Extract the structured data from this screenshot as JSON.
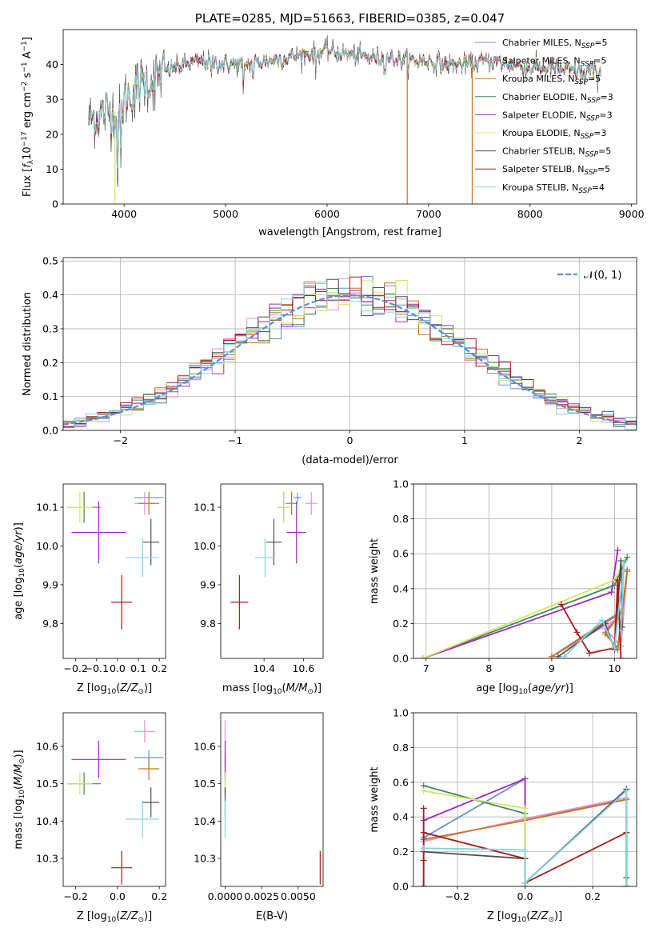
{
  "colors": {
    "chabrier_miles": "#6a8fd8",
    "salpeter_miles": "#e88fca",
    "kroupa_miles": "#c9731f",
    "chabrier_elodie": "#3f8a55",
    "salpeter_elodie": "#a126c4",
    "kroupa_elodie": "#d4e45f",
    "chabrier_stelib": "#4d4d4d",
    "salpeter_stelib": "#a81a1a",
    "kroupa_stelib": "#7fd6dc"
  },
  "chart_data": [
    {
      "id": "spectrum",
      "type": "line",
      "title": "PLATE=0285, MJD=51663, FIBERID=0385, z=0.047",
      "xlabel": "wavelength [Angstrom, rest frame]",
      "ylabel": "Flux [f_λ10^-17 erg cm^-2 s^-1 A^-1]",
      "xlim": [
        3400,
        9050
      ],
      "ylim": [
        0,
        50
      ],
      "xticks": [
        4000,
        5000,
        6000,
        7000,
        8000,
        9000
      ],
      "yticks": [
        0,
        10,
        20,
        30,
        40
      ],
      "legend_loc": "right",
      "legend": [
        {
          "key": "chabrier_miles",
          "label": "Chabrier MILES, N",
          "sub": "SSP",
          "suffix": "=5"
        },
        {
          "key": "salpeter_miles",
          "label": "Salpeter MILES, N",
          "sub": "SSP",
          "suffix": "=5"
        },
        {
          "key": "kroupa_miles",
          "label": "Kroupa MILES, N",
          "sub": "SSP",
          "suffix": "=5"
        },
        {
          "key": "chabrier_elodie",
          "label": "Chabrier ELODIE, N",
          "sub": "SSP",
          "suffix": "=3"
        },
        {
          "key": "salpeter_elodie",
          "label": "Salpeter ELODIE, N",
          "sub": "SSP",
          "suffix": "=3"
        },
        {
          "key": "kroupa_elodie",
          "label": "Kroupa ELODIE, N",
          "sub": "SSP",
          "suffix": "=3"
        },
        {
          "key": "chabrier_stelib",
          "label": "Chabrier STELIB, N",
          "sub": "SSP",
          "suffix": "=5"
        },
        {
          "key": "salpeter_stelib",
          "label": "Salpeter STELIB, N",
          "sub": "SSP",
          "suffix": "=5"
        },
        {
          "key": "kroupa_stelib",
          "label": "Kroupa STELIB, N",
          "sub": "SSP",
          "suffix": "=4"
        }
      ],
      "continuum": [
        [
          3650,
          24
        ],
        [
          3700,
          25
        ],
        [
          3800,
          26
        ],
        [
          3900,
          27
        ],
        [
          3950,
          25
        ],
        [
          4000,
          30
        ],
        [
          4100,
          33
        ],
        [
          4200,
          35
        ],
        [
          4300,
          36
        ],
        [
          4400,
          38
        ],
        [
          4600,
          40
        ],
        [
          4800,
          41
        ],
        [
          5000,
          40
        ],
        [
          5200,
          40
        ],
        [
          5400,
          41
        ],
        [
          5600,
          42
        ],
        [
          5800,
          43
        ],
        [
          6000,
          44
        ],
        [
          6200,
          43
        ],
        [
          6400,
          42
        ],
        [
          6600,
          42
        ],
        [
          6800,
          41
        ],
        [
          7000,
          41
        ],
        [
          7200,
          40
        ],
        [
          7400,
          40
        ],
        [
          7600,
          41
        ],
        [
          7800,
          40
        ],
        [
          8000,
          39
        ],
        [
          8200,
          39
        ],
        [
          8400,
          38
        ],
        [
          8600,
          38
        ],
        [
          8700,
          38
        ]
      ],
      "dips": [
        [
          3934,
          5
        ],
        [
          3969,
          8
        ],
        [
          4102,
          28
        ],
        [
          4304,
          31
        ],
        [
          4861,
          36
        ],
        [
          5175,
          30
        ],
        [
          5270,
          35
        ],
        [
          5890,
          37
        ],
        [
          6563,
          38
        ],
        [
          8498,
          36
        ],
        [
          8542,
          34
        ],
        [
          8662,
          35
        ]
      ],
      "drops": [
        {
          "key": "kroupa_miles",
          "x": 6790
        },
        {
          "key": "kroupa_miles",
          "x": 7430
        },
        {
          "key": "kroupa_elodie",
          "x": 3910
        }
      ]
    },
    {
      "id": "residual_hist",
      "type": "histogram",
      "xlabel": "(data-model)/error",
      "ylabel": "Normed distribution",
      "xlim": [
        -2.5,
        2.5
      ],
      "ylim": [
        0,
        0.51
      ],
      "xticks": [
        -2,
        -1,
        0,
        1,
        2
      ],
      "yticks": [
        0.0,
        0.1,
        0.2,
        0.3,
        0.4,
        0.5
      ],
      "grid": true,
      "bin_width": 0.1,
      "legend": [
        {
          "label": "𝒩(0, 1)"
        }
      ],
      "legend_loc": "top-right"
    },
    {
      "id": "age_vs_Z",
      "type": "errorbar",
      "xlabel": "Z [log10(Z/Z⊙)]",
      "ylabel": "age [log10(age/yr)]",
      "xlim": [
        -0.26,
        0.23
      ],
      "ylim": [
        9.71,
        10.16
      ],
      "xticks": [
        -0.2,
        -0.1,
        0.0,
        0.1,
        0.2
      ],
      "yticks": [
        9.8,
        9.9,
        10.0,
        10.1
      ]
    },
    {
      "id": "age_vs_mass",
      "type": "errorbar",
      "xlabel": "mass [log10(M/M⊙)]",
      "xlim": [
        10.18,
        10.7
      ],
      "ylim": [
        9.71,
        10.16
      ],
      "xticks": [
        10.4,
        10.6
      ],
      "yticks": [
        9.8,
        9.9,
        10.0,
        10.1
      ]
    },
    {
      "id": "weight_vs_age",
      "type": "line",
      "xlabel": "age [log10(age/yr)]",
      "ylabel": "mass weight",
      "xlim": [
        6.8,
        10.35
      ],
      "ylim": [
        0,
        1.0
      ],
      "xticks": [
        7,
        8,
        9,
        10
      ],
      "yticks": [
        0.0,
        0.2,
        0.4,
        0.6,
        0.8,
        1.0
      ],
      "grid": true
    },
    {
      "id": "mass_vs_Z",
      "type": "errorbar",
      "xlabel": "Z [log10(Z/Z⊙)]",
      "ylabel": "mass [log10(M/M⊙)]",
      "xlim": [
        -0.26,
        0.23
      ],
      "ylim": [
        10.225,
        10.69
      ],
      "xticks": [
        -0.2,
        0.0,
        0.2
      ],
      "yticks": [
        10.3,
        10.4,
        10.5,
        10.6
      ]
    },
    {
      "id": "mass_vs_ebv",
      "type": "errorbar",
      "xlabel": "E(B-V)",
      "xlim": [
        -0.0003,
        0.0067
      ],
      "ylim": [
        10.225,
        10.69
      ],
      "xticks": [
        0.0,
        0.0025,
        0.005
      ],
      "xtick_labels": [
        "0.0000",
        "0.0025",
        "0.0050"
      ],
      "yticks": [
        10.3,
        10.4,
        10.5,
        10.6
      ]
    },
    {
      "id": "weight_vs_Z",
      "type": "line",
      "xlabel": "Z [log10(Z/Z⊙)]",
      "ylabel": "mass weight",
      "xlim": [
        -0.33,
        0.33
      ],
      "ylim": [
        0,
        1.0
      ],
      "xticks": [
        -0.2,
        0.0,
        0.2
      ],
      "yticks": [
        0.0,
        0.2,
        0.4,
        0.6,
        0.8,
        1.0
      ],
      "grid": true
    }
  ],
  "fits": [
    {
      "key": "chabrier_miles",
      "age": 10.125,
      "age_err": 0.012,
      "Z": 0.15,
      "Z_err": 0.07,
      "mass": 10.57,
      "mass_err": 0.02,
      "ebv": 0.0
    },
    {
      "key": "salpeter_miles",
      "age": 10.11,
      "age_err": 0.03,
      "Z": 0.13,
      "Z_err": 0.05,
      "mass": 10.64,
      "mass_err": 0.03,
      "ebv": 0.0
    },
    {
      "key": "kroupa_miles",
      "age": 10.11,
      "age_err": 0.03,
      "Z": 0.15,
      "Z_err": 0.05,
      "mass": 10.54,
      "mass_err": 0.03,
      "ebv": 0.0
    },
    {
      "key": "chabrier_elodie",
      "age": 10.1,
      "age_err": 0.04,
      "Z": -0.16,
      "Z_err": 0.08,
      "mass": 10.5,
      "mass_err": 0.03,
      "ebv": 0.0
    },
    {
      "key": "salpeter_elodie",
      "age": 10.035,
      "age_err": 0.08,
      "Z": -0.09,
      "Z_err": 0.13,
      "mass": 10.565,
      "mass_err": 0.05,
      "ebv": 0.0
    },
    {
      "key": "kroupa_elodie",
      "age": 10.1,
      "age_err": 0.04,
      "Z": -0.18,
      "Z_err": 0.06,
      "mass": 10.5,
      "mass_err": 0.03,
      "ebv": 0.0
    },
    {
      "key": "chabrier_stelib",
      "age": 10.01,
      "age_err": 0.06,
      "Z": 0.16,
      "Z_err": 0.04,
      "mass": 10.45,
      "mass_err": 0.04,
      "ebv": 0.0
    },
    {
      "key": "salpeter_stelib",
      "age": 9.855,
      "age_err": 0.07,
      "Z": 0.02,
      "Z_err": 0.05,
      "mass": 10.275,
      "mass_err": 0.045,
      "ebv": 0.0065
    },
    {
      "key": "kroupa_stelib",
      "age": 9.97,
      "age_err": 0.05,
      "Z": 0.12,
      "Z_err": 0.08,
      "mass": 10.405,
      "mass_err": 0.05,
      "ebv": 0.0
    }
  ],
  "weights_age": {
    "chabrier_miles": [
      [
        9.0,
        0.01
      ],
      [
        10.1,
        0.27
      ],
      [
        9.85,
        0.15
      ],
      [
        10.05,
        0.05
      ],
      [
        10.2,
        0.51
      ]
    ],
    "salpeter_miles": [
      [
        9.0,
        0.01
      ],
      [
        10.05,
        0.23
      ],
      [
        9.85,
        0.17
      ],
      [
        10.1,
        0.07
      ],
      [
        10.2,
        0.5
      ]
    ],
    "kroupa_miles": [
      [
        9.0,
        0.01
      ],
      [
        10.1,
        0.26
      ],
      [
        9.85,
        0.14
      ],
      [
        10.05,
        0.06
      ],
      [
        10.2,
        0.5
      ]
    ],
    "chabrier_elodie": [
      [
        6.95,
        0.0
      ],
      [
        10.0,
        0.42
      ],
      [
        10.2,
        0.58
      ]
    ],
    "salpeter_elodie": [
      [
        6.95,
        0.0
      ],
      [
        9.95,
        0.38
      ],
      [
        10.05,
        0.62
      ]
    ],
    "kroupa_elodie": [
      [
        6.95,
        0.0
      ],
      [
        10.0,
        0.45
      ],
      [
        10.15,
        0.55
      ]
    ],
    "chabrier_stelib": [
      [
        9.1,
        0.01
      ],
      [
        9.85,
        0.2
      ],
      [
        10.0,
        0.05
      ],
      [
        10.1,
        0.56
      ],
      [
        10.12,
        0.18
      ]
    ],
    "salpeter_stelib": [
      [
        9.15,
        0.31
      ],
      [
        9.4,
        0.15
      ],
      [
        9.6,
        0.03
      ],
      [
        10.0,
        0.06
      ],
      [
        10.05,
        0.45
      ],
      [
        10.1,
        0.0
      ]
    ],
    "kroupa_stelib": [
      [
        9.2,
        0.01
      ],
      [
        9.8,
        0.22
      ],
      [
        10.0,
        0.06
      ],
      [
        10.15,
        0.55
      ],
      [
        10.1,
        0.16
      ]
    ]
  },
  "weights_Z": {
    "chabrier_miles": [
      [
        -0.3,
        0.28
      ],
      [
        0.0,
        0.62
      ],
      [
        0.0,
        0.39
      ],
      [
        0.3,
        0.5
      ]
    ],
    "salpeter_miles": [
      [
        -0.3,
        0.26
      ],
      [
        0.0,
        0.39
      ],
      [
        0.3,
        0.51
      ]
    ],
    "kroupa_miles": [
      [
        -0.3,
        0.27
      ],
      [
        0.0,
        0.38
      ],
      [
        0.3,
        0.5
      ],
      [
        0.3,
        0.0
      ]
    ],
    "chabrier_elodie": [
      [
        -0.3,
        0.58
      ],
      [
        0.0,
        0.42
      ],
      [
        0.0,
        0.0
      ]
    ],
    "salpeter_elodie": [
      [
        -0.3,
        0.0
      ],
      [
        -0.3,
        0.38
      ],
      [
        0.0,
        0.62
      ],
      [
        0.0,
        0.0
      ]
    ],
    "kroupa_elodie": [
      [
        -0.3,
        0.55
      ],
      [
        0.0,
        0.45
      ],
      [
        0.0,
        0.0
      ]
    ],
    "chabrier_stelib": [
      [
        -0.3,
        0.2
      ],
      [
        0.0,
        0.16
      ],
      [
        0.0,
        0.02
      ],
      [
        0.3,
        0.56
      ],
      [
        0.3,
        0.05
      ],
      [
        0.3,
        0.0
      ]
    ],
    "salpeter_stelib": [
      [
        -0.3,
        0.0
      ],
      [
        -0.3,
        0.45
      ],
      [
        -0.3,
        0.15
      ],
      [
        -0.3,
        0.31
      ],
      [
        0.0,
        0.16
      ],
      [
        0.0,
        0.02
      ],
      [
        0.3,
        0.31
      ],
      [
        0.3,
        0.0
      ]
    ],
    "kroupa_stelib": [
      [
        -0.3,
        0.22
      ],
      [
        0.0,
        0.21
      ],
      [
        0.0,
        0.02
      ],
      [
        0.3,
        0.55
      ],
      [
        0.3,
        0.0
      ]
    ]
  }
}
